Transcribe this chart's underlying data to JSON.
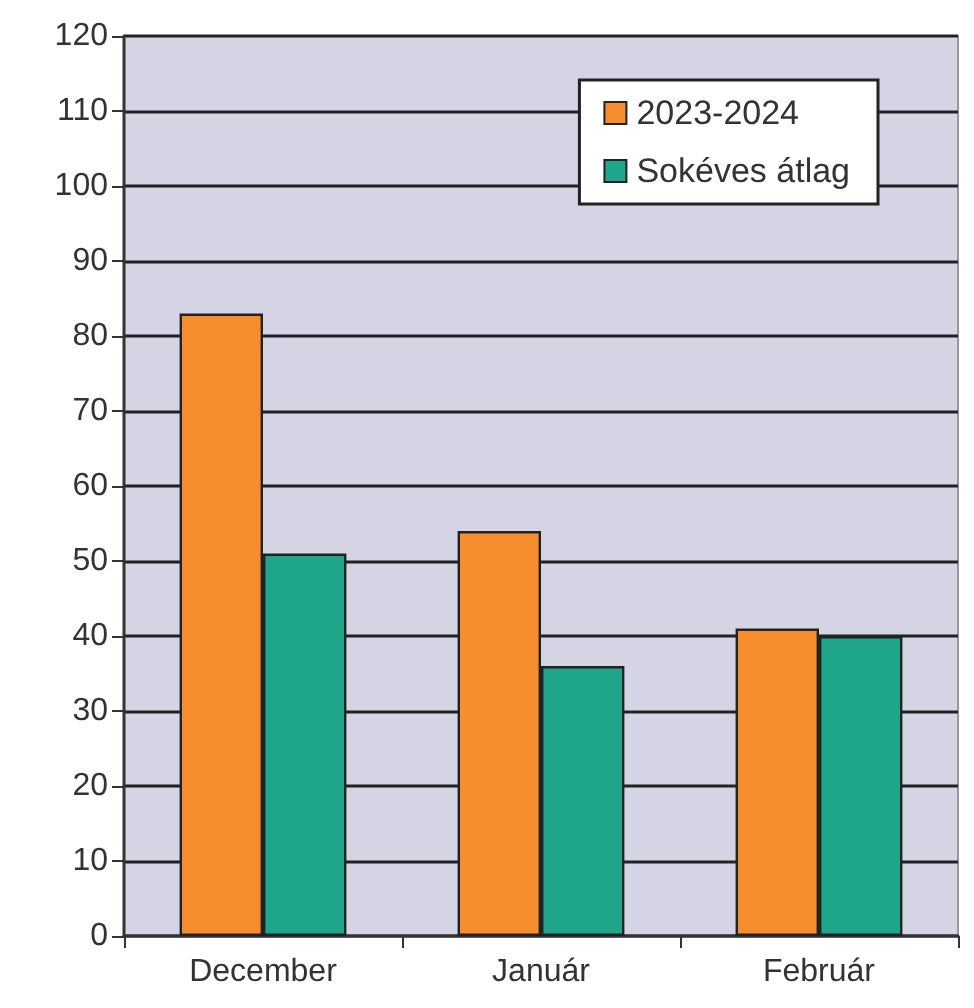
{
  "chart_data": {
    "type": "bar",
    "categories": [
      "December",
      "Január",
      "Február"
    ],
    "series": [
      {
        "name": "2023-2024",
        "color": "#f68d2e",
        "values": [
          83,
          54,
          41
        ]
      },
      {
        "name": "Sokéves átlag",
        "color": "#1fa58a",
        "values": [
          51,
          36,
          40
        ]
      }
    ],
    "ylim": [
      0,
      120
    ],
    "yticks": [
      0,
      10,
      20,
      30,
      40,
      50,
      60,
      70,
      80,
      90,
      100,
      110,
      120
    ],
    "grid": "y",
    "legend": "top right"
  }
}
